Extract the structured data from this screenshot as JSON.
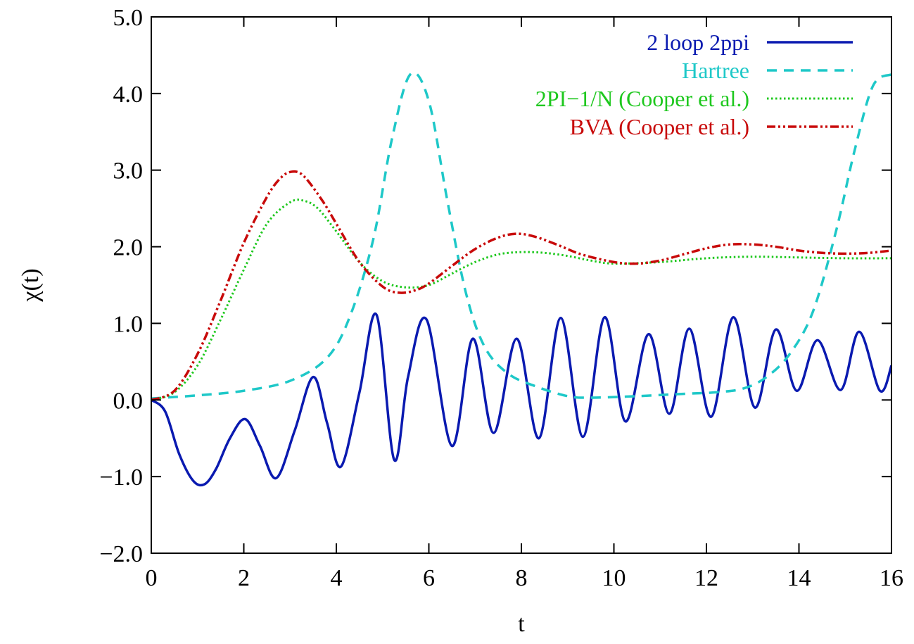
{
  "chart_data": {
    "type": "line",
    "title": "",
    "xlabel": "t",
    "ylabel": "χ(t)",
    "xlim": [
      0,
      16
    ],
    "ylim": [
      -2.0,
      5.0
    ],
    "xticks": [
      0,
      2,
      4,
      6,
      8,
      10,
      12,
      14,
      16
    ],
    "xtick_labels": [
      "0",
      "2",
      "4",
      "6",
      "8",
      "10",
      "12",
      "14",
      "16"
    ],
    "yticks": [
      -2,
      -1,
      0,
      1,
      2,
      3,
      4,
      5
    ],
    "ytick_labels": [
      "−2.0",
      "−1.0",
      "0.0",
      "1.0",
      "2.0",
      "3.0",
      "4.0",
      "5.0"
    ],
    "grid": false,
    "legend_position": "top-right",
    "series": [
      {
        "name": "2 loop 2ppi",
        "color": "#0a1ab0",
        "style": "solid",
        "x": [
          0,
          0.3,
          0.6,
          0.9,
          1.15,
          1.4,
          1.7,
          2.03,
          2.35,
          2.7,
          3.1,
          3.5,
          3.8,
          4.1,
          4.5,
          4.87,
          5.25,
          5.55,
          5.95,
          6.5,
          6.95,
          7.4,
          7.9,
          8.38,
          8.85,
          9.33,
          9.8,
          10.25,
          10.75,
          11.2,
          11.63,
          12.1,
          12.58,
          13.05,
          13.5,
          13.95,
          14.4,
          14.9,
          15.3,
          15.75,
          16
        ],
        "y": [
          0.0,
          -0.15,
          -0.7,
          -1.05,
          -1.1,
          -0.9,
          -0.5,
          -0.25,
          -0.6,
          -1.02,
          -0.4,
          0.3,
          -0.3,
          -0.87,
          0.1,
          1.11,
          -0.78,
          0.3,
          1.05,
          -0.6,
          0.8,
          -0.43,
          0.8,
          -0.5,
          1.07,
          -0.48,
          1.08,
          -0.28,
          0.86,
          -0.18,
          0.93,
          -0.22,
          1.08,
          -0.1,
          0.92,
          0.12,
          0.78,
          0.13,
          0.89,
          0.12,
          0.45
        ]
      },
      {
        "name": "Hartree",
        "color": "#1ec8c8",
        "style": "dashed",
        "x": [
          0,
          1,
          2,
          3,
          3.8,
          4.3,
          4.8,
          5.2,
          5.6,
          6.0,
          6.4,
          6.8,
          7.2,
          7.7,
          8.3,
          9.0,
          9.5,
          10.5,
          11.5,
          12.2,
          12.8,
          13.3,
          13.8,
          14.3,
          14.8,
          15.2,
          15.6,
          16
        ],
        "y": [
          0.02,
          0.06,
          0.12,
          0.25,
          0.55,
          1.1,
          2.1,
          3.4,
          4.25,
          3.9,
          2.6,
          1.4,
          0.7,
          0.35,
          0.18,
          0.05,
          0.03,
          0.05,
          0.08,
          0.1,
          0.15,
          0.3,
          0.6,
          1.15,
          2.2,
          3.25,
          4.1,
          4.25
        ]
      },
      {
        "name": "2PI−1/N (Cooper et al.)",
        "color": "#1ec81e",
        "style": "dotted",
        "x": [
          0,
          0.5,
          1.0,
          1.5,
          2.0,
          2.5,
          3.0,
          3.3,
          3.6,
          4.0,
          4.5,
          5.0,
          5.5,
          6.0,
          6.5,
          7.0,
          7.5,
          8.0,
          8.5,
          9.0,
          9.5,
          10.0,
          11.0,
          12.0,
          13.0,
          14.0,
          15.0,
          16.0
        ],
        "y": [
          0.0,
          0.1,
          0.45,
          1.05,
          1.7,
          2.3,
          2.58,
          2.6,
          2.5,
          2.2,
          1.8,
          1.55,
          1.47,
          1.5,
          1.65,
          1.8,
          1.9,
          1.93,
          1.92,
          1.88,
          1.82,
          1.78,
          1.8,
          1.85,
          1.87,
          1.86,
          1.85,
          1.85
        ]
      },
      {
        "name": "BVA (Cooper et al.)",
        "color": "#c80a0a",
        "style": "dashdotdot",
        "x": [
          0,
          0.5,
          1.0,
          1.5,
          2.0,
          2.5,
          2.8,
          3.05,
          3.3,
          3.7,
          4.0,
          4.5,
          5.0,
          5.35,
          5.7,
          6.0,
          6.5,
          7.0,
          7.5,
          7.9,
          8.3,
          8.8,
          9.3,
          10.0,
          10.5,
          11.0,
          11.5,
          12.0,
          12.5,
          13.0,
          13.5,
          14.0,
          14.5,
          15.0,
          15.5,
          16.0
        ],
        "y": [
          0.0,
          0.12,
          0.6,
          1.3,
          2.05,
          2.65,
          2.9,
          2.98,
          2.92,
          2.6,
          2.3,
          1.8,
          1.48,
          1.4,
          1.43,
          1.52,
          1.75,
          1.97,
          2.12,
          2.17,
          2.13,
          2.02,
          1.9,
          1.8,
          1.78,
          1.82,
          1.9,
          1.98,
          2.03,
          2.03,
          2.0,
          1.95,
          1.92,
          1.91,
          1.92,
          1.95
        ]
      }
    ]
  }
}
